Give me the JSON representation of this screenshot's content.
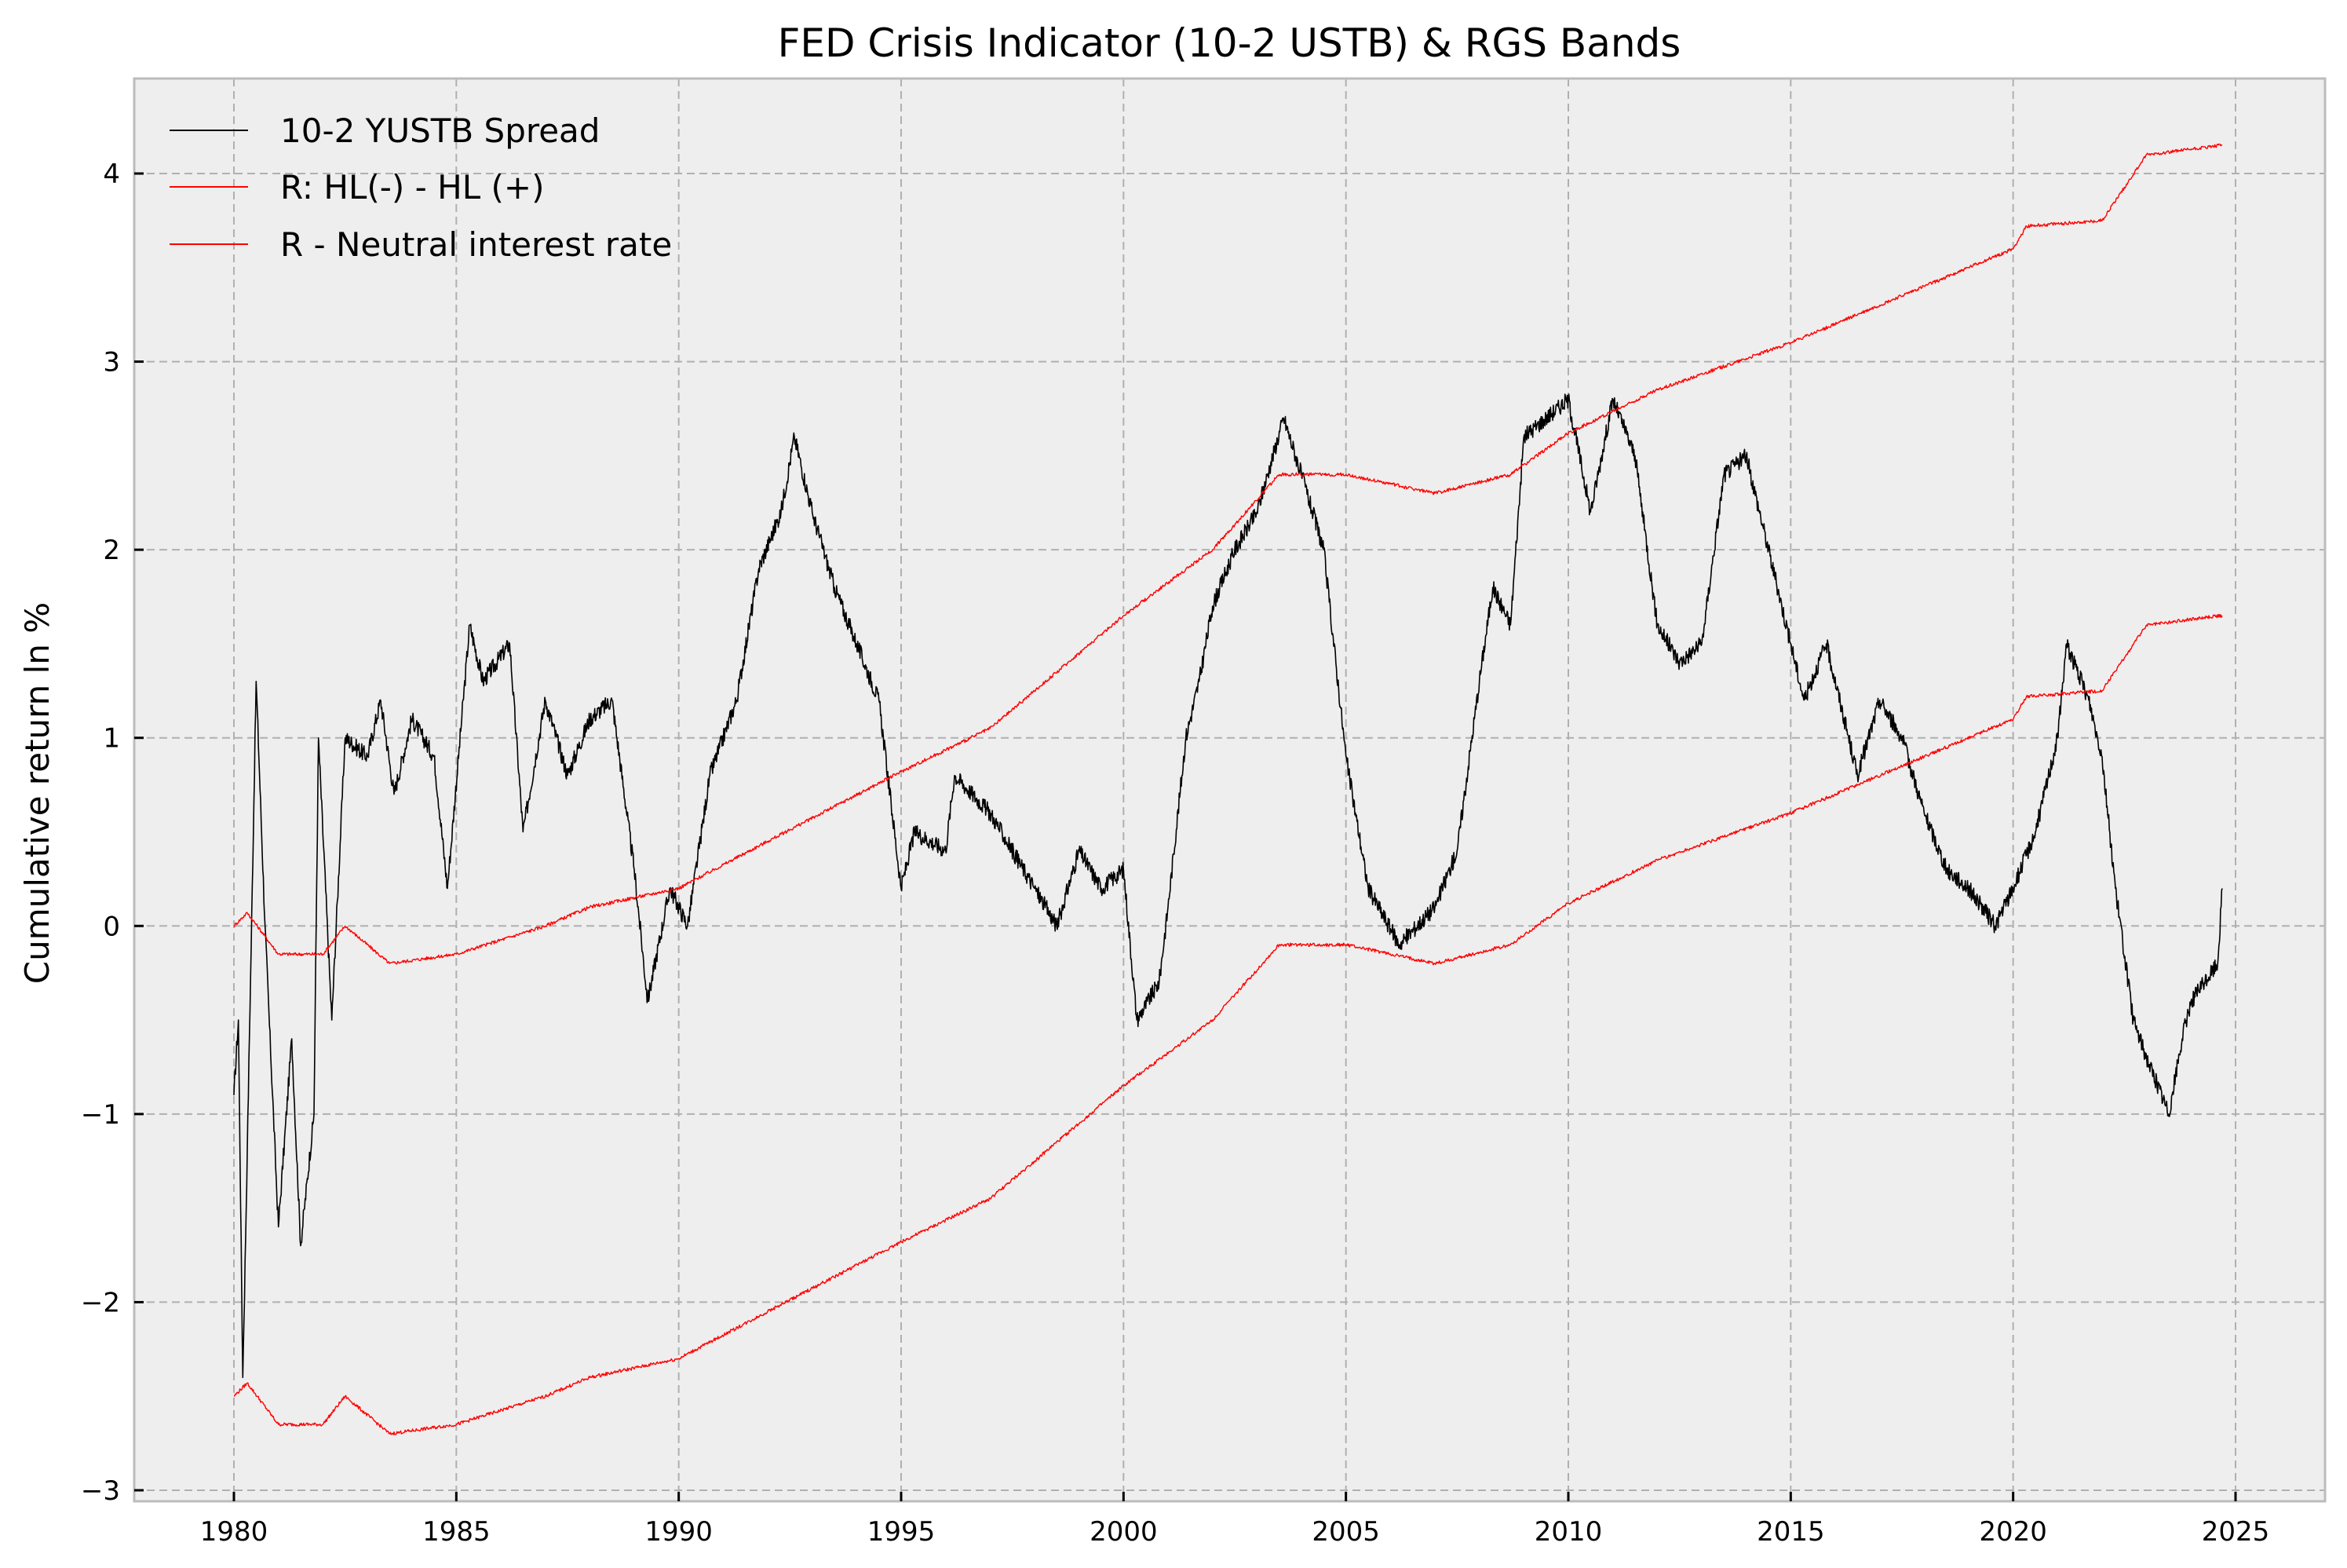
{
  "chart_data": {
    "type": "line",
    "title": "FED Crisis Indicator (10-2 USTB) & RGS Bands",
    "xlabel": "",
    "ylabel": "Cumulative return ln %",
    "xlim": [
      1977.8,
      2026.1
    ],
    "ylim": [
      -3.05,
      4.5
    ],
    "xticks": [
      1980,
      1985,
      1990,
      1995,
      2000,
      2005,
      2010,
      2015,
      2020,
      2025
    ],
    "yticks": [
      -3,
      -2,
      -1,
      0,
      1,
      2,
      3,
      4
    ],
    "ytick_labels": [
      "−3",
      "−2",
      "−1",
      "0",
      "1",
      "2",
      "3",
      "4"
    ],
    "grid": true,
    "legend_position": "top-left",
    "colors": {
      "background": "#eeeeee",
      "grid": "#b0b0b0",
      "spine": "#bcbcbc"
    },
    "series": [
      {
        "name": "10-2 YUSTB Spread",
        "color": "#000000",
        "x": [
          1980.0,
          1980.1,
          1980.2,
          1980.3,
          1980.5,
          1980.7,
          1981.0,
          1981.3,
          1981.5,
          1981.8,
          1981.9,
          1982.2,
          1982.5,
          1983.0,
          1983.3,
          1983.6,
          1984.0,
          1984.5,
          1984.8,
          1985.3,
          1985.6,
          1986.2,
          1986.5,
          1987.0,
          1987.5,
          1988.0,
          1988.5,
          1989.0,
          1989.3,
          1989.8,
          1990.2,
          1990.7,
          1991.3,
          1991.8,
          1992.3,
          1992.6,
          1993.0,
          1993.5,
          1994.0,
          1994.5,
          1995.0,
          1995.3,
          1996.0,
          1996.2,
          1997.0,
          1998.0,
          1998.5,
          1999.0,
          1999.5,
          2000.0,
          2000.3,
          2000.8,
          2001.0,
          2001.4,
          2001.7,
          2002.0,
          2002.5,
          2003.0,
          2003.6,
          2004.0,
          2004.5,
          2005.0,
          2005.5,
          2006.2,
          2007.0,
          2007.5,
          2008.0,
          2008.3,
          2008.7,
          2009.0,
          2009.5,
          2010.0,
          2010.5,
          2011.0,
          2011.5,
          2012.0,
          2012.5,
          2013.0,
          2013.5,
          2014.0,
          2014.5,
          2015.0,
          2015.3,
          2015.8,
          2016.5,
          2017.0,
          2017.5,
          2018.0,
          2018.5,
          2019.0,
          2019.6,
          2020.0,
          2020.5,
          2021.0,
          2021.2,
          2021.7,
          2022.0,
          2022.3,
          2022.7,
          2023.0,
          2023.5,
          2023.8,
          2024.0,
          2024.3,
          2024.6,
          2024.7
        ],
        "values": [
          -0.9,
          -0.5,
          -2.4,
          -1.2,
          1.3,
          0.0,
          -1.6,
          -0.6,
          -1.7,
          -1.0,
          1.0,
          -0.5,
          1.0,
          0.9,
          1.2,
          0.7,
          1.1,
          0.9,
          0.2,
          1.6,
          1.3,
          1.5,
          0.5,
          1.2,
          0.8,
          1.1,
          1.2,
          0.3,
          -0.4,
          0.2,
          0.0,
          0.8,
          1.2,
          1.9,
          2.2,
          2.6,
          2.2,
          1.8,
          1.5,
          1.2,
          0.2,
          0.5,
          0.4,
          0.8,
          0.6,
          0.2,
          0.0,
          0.4,
          0.2,
          0.3,
          -0.5,
          -0.3,
          0.1,
          1.0,
          1.3,
          1.7,
          2.0,
          2.2,
          2.7,
          2.4,
          2.0,
          0.9,
          0.2,
          -0.1,
          0.1,
          0.4,
          1.3,
          1.8,
          1.6,
          2.6,
          2.7,
          2.8,
          2.2,
          2.8,
          2.5,
          1.6,
          1.4,
          1.5,
          2.4,
          2.5,
          2.0,
          1.5,
          1.2,
          1.5,
          0.8,
          1.2,
          1.0,
          0.6,
          0.3,
          0.2,
          0.0,
          0.2,
          0.5,
          1.0,
          1.5,
          1.2,
          0.9,
          0.2,
          -0.5,
          -0.7,
          -1.0,
          -0.6,
          -0.4,
          -0.3,
          -0.2,
          0.2
        ]
      },
      {
        "name": "R: HL(-) - HL (+)",
        "color": "#ff0000",
        "x": [
          1980.0,
          1980.3,
          1981.0,
          1982.0,
          1982.5,
          1983.5,
          1985.0,
          1987.0,
          1988.0,
          1990.0,
          1992.0,
          1995.0,
          1997.0,
          2000.0,
          2002.0,
          2003.5,
          2005.0,
          2007.0,
          2008.7,
          2010.0,
          2012.0,
          2015.0,
          2018.0,
          2020.0,
          2020.3,
          2022.0,
          2023.0,
          2024.7
        ],
        "values": [
          0.0,
          0.07,
          -0.15,
          -0.15,
          0.0,
          -0.2,
          -0.15,
          0.0,
          0.1,
          0.2,
          0.45,
          0.82,
          1.05,
          1.65,
          2.0,
          2.4,
          2.4,
          2.3,
          2.4,
          2.62,
          2.85,
          3.1,
          3.4,
          3.6,
          3.72,
          3.75,
          4.1,
          4.15
        ]
      },
      {
        "name": "R - Neutral interest rate",
        "color": "#ff0000",
        "x": [
          1980.0,
          1980.3,
          1981.0,
          1982.0,
          1982.5,
          1983.5,
          1985.0,
          1987.0,
          1988.0,
          1990.0,
          1992.0,
          1995.0,
          1997.0,
          2000.0,
          2002.0,
          2003.5,
          2005.0,
          2007.0,
          2008.7,
          2010.0,
          2012.0,
          2015.0,
          2018.0,
          2020.0,
          2020.3,
          2022.0,
          2023.0,
          2024.7
        ],
        "values": [
          -2.5,
          -2.43,
          -2.65,
          -2.65,
          -2.5,
          -2.7,
          -2.65,
          -2.5,
          -2.4,
          -2.3,
          -2.05,
          -1.68,
          -1.45,
          -0.85,
          -0.5,
          -0.1,
          -0.1,
          -0.2,
          -0.1,
          0.12,
          0.35,
          0.6,
          0.9,
          1.1,
          1.22,
          1.25,
          1.6,
          1.65
        ]
      }
    ]
  }
}
